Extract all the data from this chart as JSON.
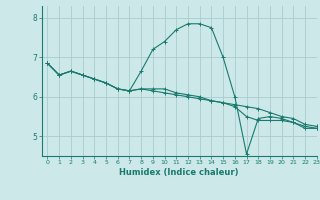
{
  "xlabel": "Humidex (Indice chaleur)",
  "ylabel": "",
  "bg_color": "#cce8e8",
  "grid_color": "#aacccc",
  "line_color": "#1a7a6e",
  "xlim": [
    -0.5,
    23
  ],
  "ylim": [
    4.5,
    8.3
  ],
  "yticks": [
    5,
    6,
    7,
    8
  ],
  "xticks": [
    0,
    1,
    2,
    3,
    4,
    5,
    6,
    7,
    8,
    9,
    10,
    11,
    12,
    13,
    14,
    15,
    16,
    17,
    18,
    19,
    20,
    21,
    22,
    23
  ],
  "series": [
    {
      "x": [
        0,
        1,
        2,
        3,
        4,
        5,
        6,
        7,
        8,
        9,
        10,
        11,
        12,
        13,
        14,
        15,
        16,
        17,
        18,
        19,
        20,
        21,
        22,
        23
      ],
      "y": [
        6.85,
        6.55,
        6.65,
        6.55,
        6.45,
        6.35,
        6.2,
        6.15,
        6.65,
        7.2,
        7.4,
        7.7,
        7.85,
        7.85,
        7.75,
        7.0,
        6.0,
        4.55,
        5.45,
        5.5,
        5.45,
        5.35,
        5.2,
        5.2
      ]
    },
    {
      "x": [
        0,
        1,
        2,
        3,
        4,
        5,
        6,
        7,
        8,
        9,
        10,
        11,
        12,
        13,
        14,
        15,
        16,
        17,
        18,
        19,
        20,
        21,
        22,
        23
      ],
      "y": [
        6.85,
        6.55,
        6.65,
        6.55,
        6.45,
        6.35,
        6.2,
        6.15,
        6.2,
        6.15,
        6.1,
        6.05,
        6.0,
        5.95,
        5.9,
        5.85,
        5.8,
        5.75,
        5.7,
        5.6,
        5.5,
        5.45,
        5.3,
        5.25
      ]
    },
    {
      "x": [
        0,
        1,
        2,
        3,
        4,
        5,
        6,
        7,
        8,
        9,
        10,
        11,
        12,
        13,
        14,
        15,
        16,
        17,
        18,
        19,
        20,
        21,
        22,
        23
      ],
      "y": [
        6.85,
        6.55,
        6.65,
        6.55,
        6.45,
        6.35,
        6.2,
        6.15,
        6.2,
        6.2,
        6.2,
        6.1,
        6.05,
        6.0,
        5.9,
        5.85,
        5.75,
        5.5,
        5.4,
        5.4,
        5.4,
        5.35,
        5.25,
        5.2
      ]
    }
  ]
}
